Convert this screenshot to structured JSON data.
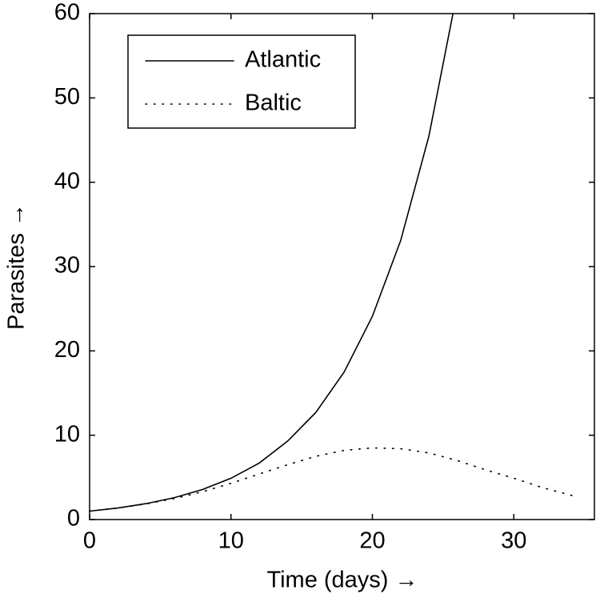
{
  "chart_data": {
    "type": "line",
    "xlabel": "Time (days) →",
    "ylabel": "Parasites →",
    "xlim": [
      0,
      35.7
    ],
    "ylim": [
      0,
      60
    ],
    "xticks": [
      0,
      10,
      20,
      30
    ],
    "yticks": [
      0,
      10,
      20,
      30,
      40,
      50,
      60
    ],
    "legend": "upper left",
    "series": [
      {
        "name": "Atlantic",
        "color": "#000000",
        "line_style": "solid",
        "x": [
          0,
          2,
          4,
          6,
          8,
          10,
          12,
          14,
          16,
          18,
          20,
          22,
          24,
          25.7
        ],
        "values": [
          1,
          1.37,
          1.89,
          2.6,
          3.57,
          4.9,
          6.7,
          9.3,
          12.7,
          17.5,
          24.1,
          33.1,
          45.5,
          60
        ]
      },
      {
        "name": "Baltic",
        "color": "#000000",
        "line_style": "dotted",
        "x": [
          0,
          2,
          4,
          6,
          8,
          10,
          12,
          14,
          16,
          18,
          20,
          22,
          24,
          26,
          28,
          30,
          32,
          34,
          34.5
        ],
        "values": [
          1,
          1.37,
          1.85,
          2.5,
          3.3,
          4.3,
          5.4,
          6.5,
          7.5,
          8.2,
          8.5,
          8.4,
          7.9,
          7.0,
          5.9,
          4.9,
          3.8,
          2.9,
          2.7
        ]
      }
    ]
  }
}
